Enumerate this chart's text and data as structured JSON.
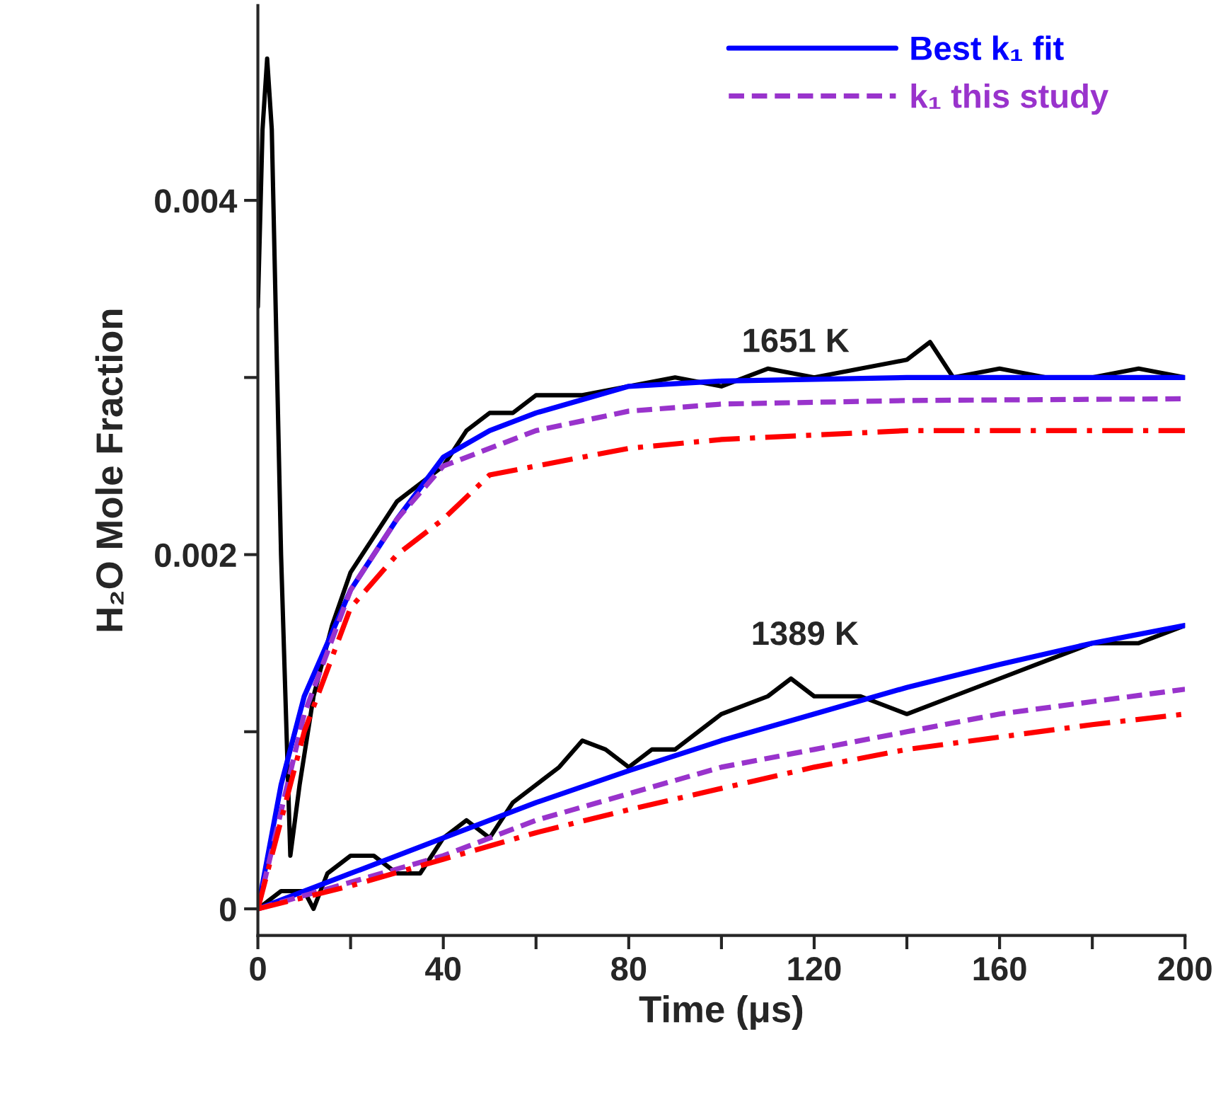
{
  "chart_data": {
    "type": "line",
    "xlabel": "Time (μs)",
    "ylabel": "H₂O Mole Fraction",
    "xlim": [
      0,
      200
    ],
    "ylim": [
      -0.00015,
      0.0051
    ],
    "xticks": [
      0,
      {
        "value": 20,
        "label": null
      },
      40,
      {
        "value": 60,
        "label": null
      },
      80,
      {
        "value": 100,
        "label": null
      },
      120,
      {
        "value": 140,
        "label": null
      },
      160,
      {
        "value": 180,
        "label": null
      },
      200
    ],
    "yticks": [
      0,
      {
        "value": 0.001,
        "label": null
      },
      0.002,
      {
        "value": 0.003,
        "label": null
      },
      0.004
    ],
    "legend": "top right",
    "grid": false,
    "annotations": [
      "1651 K",
      "1389 K"
    ],
    "series": [
      {
        "color": "#000000",
        "line_style": "solid",
        "x": [
          0,
          1,
          2,
          3,
          5,
          7,
          9,
          12,
          16,
          20,
          25,
          30,
          35,
          40,
          45,
          50,
          55,
          60,
          70,
          80,
          90,
          100,
          110,
          120,
          130,
          140,
          145,
          150,
          160,
          170,
          180,
          190,
          200,
          null,
          0,
          5,
          10,
          12,
          15,
          20,
          25,
          30,
          35,
          40,
          45,
          50,
          55,
          60,
          65,
          70,
          75,
          80,
          85,
          90,
          100,
          110,
          115,
          120,
          130,
          140,
          150,
          160,
          170,
          180,
          190,
          200
        ],
        "values": [
          0.0034,
          0.0044,
          0.0048,
          0.0044,
          0.002,
          0.0003,
          0.0007,
          0.0012,
          0.0016,
          0.0019,
          0.0021,
          0.0023,
          0.0024,
          0.0025,
          0.0027,
          0.0028,
          0.0028,
          0.0029,
          0.0029,
          0.00295,
          0.003,
          0.00295,
          0.00305,
          0.003,
          0.00305,
          0.0031,
          0.0032,
          0.003,
          0.00305,
          0.003,
          0.003,
          0.00305,
          0.003,
          null,
          0,
          0.0001,
          0.0001,
          0,
          0.0002,
          0.0003,
          0.0003,
          0.0002,
          0.0002,
          0.0004,
          0.0005,
          0.0004,
          0.0006,
          0.0007,
          0.0008,
          0.00095,
          0.0009,
          0.0008,
          0.0009,
          0.0009,
          0.0011,
          0.0012,
          0.0013,
          0.0012,
          0.0012,
          0.0011,
          0.0012,
          0.0013,
          0.0014,
          0.0015,
          0.0015,
          0.0016
        ]
      },
      {
        "name": "Best k₁ fit",
        "color": "#0000ff",
        "line_style": "solid",
        "x": [
          0,
          5,
          10,
          20,
          30,
          40,
          50,
          60,
          80,
          100,
          140,
          200,
          null,
          0,
          20,
          40,
          60,
          80,
          100,
          120,
          140,
          160,
          180,
          200
        ],
        "values": [
          0,
          0.0007,
          0.0012,
          0.0018,
          0.0022,
          0.00255,
          0.0027,
          0.0028,
          0.00295,
          0.00298,
          0.003,
          0.003,
          null,
          0,
          0.0002,
          0.0004,
          0.0006,
          0.00078,
          0.00095,
          0.0011,
          0.00125,
          0.00138,
          0.0015,
          0.0016
        ]
      },
      {
        "name": "k₁ this study",
        "color": "#9933cc",
        "line_style": "dashed",
        "x": [
          0,
          10,
          20,
          30,
          40,
          50,
          60,
          80,
          100,
          140,
          200,
          null,
          0,
          20,
          40,
          60,
          80,
          100,
          120,
          140,
          160,
          180,
          200
        ],
        "values": [
          0,
          0.0011,
          0.0018,
          0.0022,
          0.0025,
          0.0026,
          0.0027,
          0.00281,
          0.00285,
          0.00287,
          0.00288,
          null,
          0,
          0.00015,
          0.0003,
          0.0005,
          0.00065,
          0.0008,
          0.0009,
          0.001,
          0.0011,
          0.00117,
          0.00124
        ]
      },
      {
        "color": "#ff0000",
        "line_style": "dashdot",
        "x": [
          0,
          10,
          20,
          30,
          40,
          50,
          60,
          80,
          100,
          140,
          200,
          null,
          0,
          20,
          40,
          60,
          80,
          100,
          120,
          140,
          160,
          180,
          200
        ],
        "values": [
          0,
          0.001,
          0.0017,
          0.002,
          0.0022,
          0.00245,
          0.0025,
          0.0026,
          0.00265,
          0.0027,
          0.0027,
          null,
          0,
          0.00013,
          0.00028,
          0.00043,
          0.00056,
          0.00068,
          0.0008,
          0.0009,
          0.00097,
          0.00104,
          0.0011
        ]
      }
    ]
  }
}
